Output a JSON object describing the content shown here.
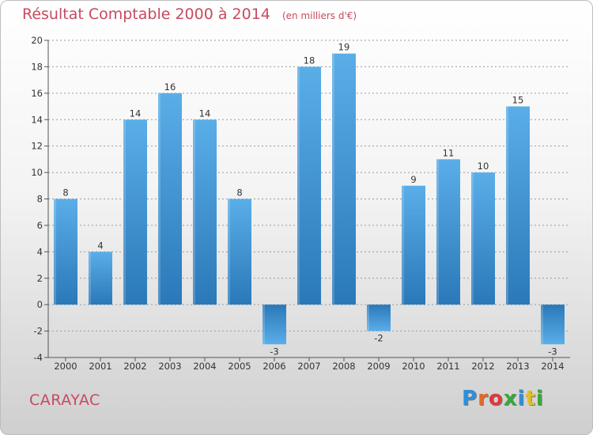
{
  "title": "Résultat Comptable 2000 à 2014",
  "title_unit": "(en milliers d'€)",
  "commune": "CARAYAC",
  "brand": {
    "text": "Proxiti",
    "letter_colors": [
      "#2f8fd8",
      "#e06a2a",
      "#e03a3a",
      "#3aa83a",
      "#2f8fd8",
      "#e0c02a",
      "#3aa83a"
    ]
  },
  "colors": {
    "bar_top": "#5aaee8",
    "bar_bottom": "#2a78b8",
    "neg_top": "#2a78b8",
    "neg_bottom": "#5aaee8",
    "grid": "#9a9a9a"
  },
  "chart_data": {
    "type": "bar",
    "title": "Résultat Comptable 2000 à 2014",
    "ylabel": "en milliers d'€",
    "xlabel": "",
    "categories": [
      "2000",
      "2001",
      "2002",
      "2003",
      "2004",
      "2005",
      "2006",
      "2007",
      "2008",
      "2009",
      "2010",
      "2011",
      "2012",
      "2013",
      "2014"
    ],
    "values": [
      8,
      4,
      14,
      16,
      14,
      8,
      -3,
      18,
      19,
      -2,
      9,
      11,
      10,
      15,
      -3
    ],
    "ylim": [
      -4,
      20
    ],
    "yticks": [
      -4,
      -2,
      0,
      2,
      4,
      6,
      8,
      10,
      12,
      14,
      16,
      18,
      20
    ],
    "grid": true
  }
}
